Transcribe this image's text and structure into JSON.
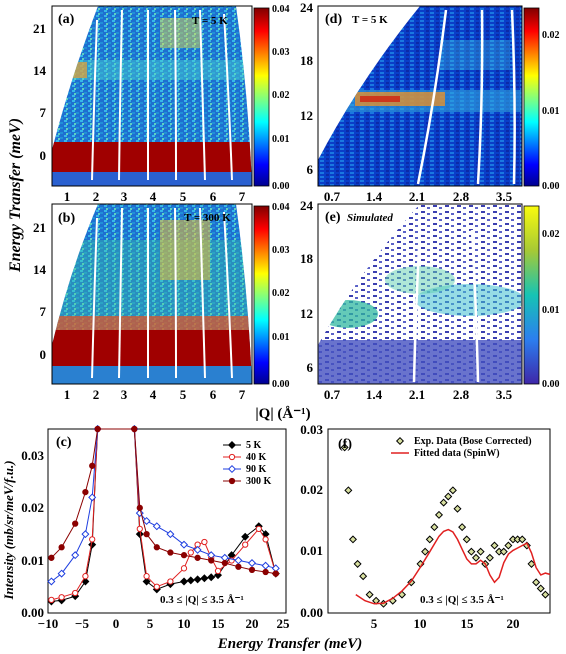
{
  "figure": {
    "ylabel_energy": "Energy Transfer (meV)",
    "xlabel_q": "|Q| (Å⁻¹)",
    "xlabel_bottom": "Energy Transfer (meV)",
    "ylabel_intensity": "Intensity (mb/sr/meV/f.u.)"
  },
  "chart_data": [
    {
      "panel": "(a)",
      "type": "heatmap",
      "annotation": "T = 5 K",
      "xticks": [
        "1",
        "2",
        "3",
        "4",
        "5",
        "6",
        "7"
      ],
      "yticks": [
        "0",
        "7",
        "14",
        "21"
      ],
      "xlim": [
        0.3,
        7.3
      ],
      "ylim": [
        -5,
        24
      ],
      "colorbar": {
        "min": 0.0,
        "max": 0.04,
        "ticks": [
          "0.04",
          "0.03",
          "0.02",
          "0.01",
          "0.00"
        ]
      }
    },
    {
      "panel": "(b)",
      "type": "heatmap",
      "annotation": "T = 300 K",
      "xticks": [
        "1",
        "2",
        "3",
        "4",
        "5",
        "6",
        "7"
      ],
      "yticks": [
        "0",
        "7",
        "14",
        "21"
      ],
      "xlim": [
        0.3,
        7.3
      ],
      "ylim": [
        -5,
        24
      ],
      "colorbar": {
        "min": 0.0,
        "max": 0.04,
        "ticks": [
          "0.04",
          "0.03",
          "0.02",
          "0.01",
          "0.00"
        ]
      }
    },
    {
      "panel": "(d)",
      "type": "heatmap",
      "annotation": "T = 5 K",
      "xticks": [
        "0.7",
        "1.4",
        "2.1",
        "2.8",
        "3.5"
      ],
      "yticks": [
        "6",
        "12",
        "18",
        "24"
      ],
      "xlim": [
        0.5,
        3.6
      ],
      "ylim": [
        4.5,
        24
      ],
      "colorbar": {
        "min": 0.0,
        "max": 0.025,
        "ticks": [
          "0.02",
          "0.01",
          "0.00"
        ]
      }
    },
    {
      "panel": "(e)",
      "type": "heatmap",
      "annotation": "Simulated",
      "xticks": [
        "0.7",
        "1.4",
        "2.1",
        "2.8",
        "3.5"
      ],
      "yticks": [
        "6",
        "12",
        "18",
        "24"
      ],
      "xlim": [
        0.5,
        3.6
      ],
      "ylim": [
        4.5,
        24
      ],
      "colorbar": {
        "min": 0.0,
        "max": 0.025,
        "ticks": [
          "0.02",
          "0.01",
          "0.00"
        ]
      }
    },
    {
      "panel": "(c)",
      "type": "line",
      "xlim": [
        -10,
        25
      ],
      "ylim": [
        0,
        0.035
      ],
      "xticks": [
        "−10",
        "−5",
        "0",
        "5",
        "10",
        "15",
        "20",
        "25"
      ],
      "yticks": [
        "0.00",
        "0.01",
        "0.02",
        "0.03"
      ],
      "annotation": "0.3 ≤ |Q| ≤ 3.5 Å⁻¹",
      "series": [
        {
          "name": "5 K",
          "color": "#000000",
          "marker": "diamond-filled",
          "x": [
            -9.5,
            -8,
            -6,
            -4.5,
            -3.5,
            -2.7,
            2.7,
            3.5,
            4.5,
            6,
            8,
            10,
            11,
            12,
            13,
            14,
            15,
            17,
            19,
            21,
            22,
            23.5
          ],
          "y": [
            0.0022,
            0.0024,
            0.0032,
            0.006,
            0.013,
            0.035,
            0.035,
            0.015,
            0.006,
            0.0045,
            0.0055,
            0.006,
            0.0062,
            0.0064,
            0.0066,
            0.0068,
            0.0072,
            0.011,
            0.0145,
            0.0165,
            0.015,
            0.0075
          ]
        },
        {
          "name": "40 K",
          "color": "#e02020",
          "marker": "circle-open",
          "x": [
            -9.5,
            -8,
            -6,
            -4.5,
            -3.5,
            -2.7,
            2.7,
            3.5,
            4.5,
            6,
            8,
            10,
            11,
            12,
            13,
            14,
            15,
            17,
            19,
            21,
            22,
            23.5
          ],
          "y": [
            0.0025,
            0.003,
            0.0038,
            0.007,
            0.014,
            0.035,
            0.035,
            0.016,
            0.007,
            0.005,
            0.006,
            0.0085,
            0.0115,
            0.013,
            0.0135,
            0.0105,
            0.008,
            0.01,
            0.013,
            0.016,
            0.014,
            0.0075
          ]
        },
        {
          "name": "90 K",
          "color": "#1f3fe0",
          "marker": "diamond-open",
          "x": [
            -9.5,
            -8,
            -6,
            -4.5,
            -3.5,
            -2.7,
            2.7,
            3.5,
            4.5,
            6,
            8,
            10,
            12,
            14,
            16,
            18,
            20,
            22,
            23.5
          ],
          "y": [
            0.006,
            0.0075,
            0.011,
            0.015,
            0.022,
            0.035,
            0.035,
            0.019,
            0.0175,
            0.0165,
            0.015,
            0.013,
            0.012,
            0.011,
            0.0105,
            0.01,
            0.0095,
            0.009,
            0.0085
          ]
        },
        {
          "name": "300 K",
          "color": "#8b0000",
          "marker": "circle-filled",
          "x": [
            -9.5,
            -8,
            -6,
            -4.5,
            -3.5,
            -2.7,
            2.7,
            3.5,
            4.5,
            6,
            8,
            10,
            12,
            14,
            16,
            18,
            20,
            22,
            23.5
          ],
          "y": [
            0.0105,
            0.0125,
            0.017,
            0.023,
            0.028,
            0.035,
            0.035,
            0.02,
            0.015,
            0.0125,
            0.0115,
            0.011,
            0.0105,
            0.01,
            0.0095,
            0.0088,
            0.0082,
            0.0078,
            0.0075
          ]
        }
      ]
    },
    {
      "panel": "(f)",
      "type": "scatter",
      "xlim": [
        0,
        24
      ],
      "ylim": [
        0,
        0.03
      ],
      "xticks": [
        "5",
        "10",
        "15",
        "20"
      ],
      "yticks": [
        "0.00",
        "0.01",
        "0.02",
        "0.03"
      ],
      "annotation": "0.3 ≤ |Q| ≤ 3.5 Å⁻¹",
      "series": [
        {
          "name": "Exp. Data (Bose Corrected)",
          "color": "#000000",
          "fill": "#d8e0a0",
          "marker": "diamond-open",
          "x": [
            1.8,
            2.2,
            2.7,
            3.2,
            3.8,
            4.5,
            5.2,
            6,
            7,
            8,
            9,
            10,
            10.5,
            11,
            11.5,
            12,
            12.5,
            13,
            13.5,
            14,
            14.5,
            15,
            15.5,
            16,
            16.5,
            17,
            17.5,
            18,
            18.5,
            19,
            19.5,
            20,
            20.5,
            21,
            21.5,
            22,
            22.5,
            23,
            23.5
          ],
          "y": [
            0.027,
            0.02,
            0.012,
            0.008,
            0.006,
            0.003,
            0.002,
            0.0015,
            0.002,
            0.003,
            0.005,
            0.008,
            0.01,
            0.012,
            0.014,
            0.016,
            0.018,
            0.019,
            0.02,
            0.017,
            0.014,
            0.012,
            0.01,
            0.009,
            0.01,
            0.008,
            0.009,
            0.011,
            0.01,
            0.01,
            0.011,
            0.012,
            0.012,
            0.012,
            0.011,
            0.008,
            0.005,
            0.004,
            0.003
          ]
        },
        {
          "name": "Fitted data (SpinW)",
          "color": "#e02020",
          "marker": "line",
          "x": [
            3,
            4,
            5,
            6,
            7,
            8,
            9,
            10,
            11,
            12,
            12.5,
            13,
            13.5,
            14,
            14.5,
            15,
            15.5,
            16,
            16.5,
            17,
            17.5,
            18,
            18.5,
            19,
            19.5,
            20,
            20.5,
            21,
            21.5,
            22,
            22.5,
            23,
            23.5,
            24
          ],
          "y": [
            0.003,
            0.002,
            0.0015,
            0.0016,
            0.0024,
            0.0036,
            0.0052,
            0.0075,
            0.01,
            0.0125,
            0.0133,
            0.0136,
            0.0132,
            0.012,
            0.0104,
            0.0088,
            0.008,
            0.008,
            0.0086,
            0.008,
            0.0062,
            0.005,
            0.0058,
            0.0082,
            0.0096,
            0.0102,
            0.0106,
            0.011,
            0.0114,
            0.0098,
            0.0074,
            0.0062,
            0.0065,
            0.0063
          ]
        }
      ]
    }
  ]
}
